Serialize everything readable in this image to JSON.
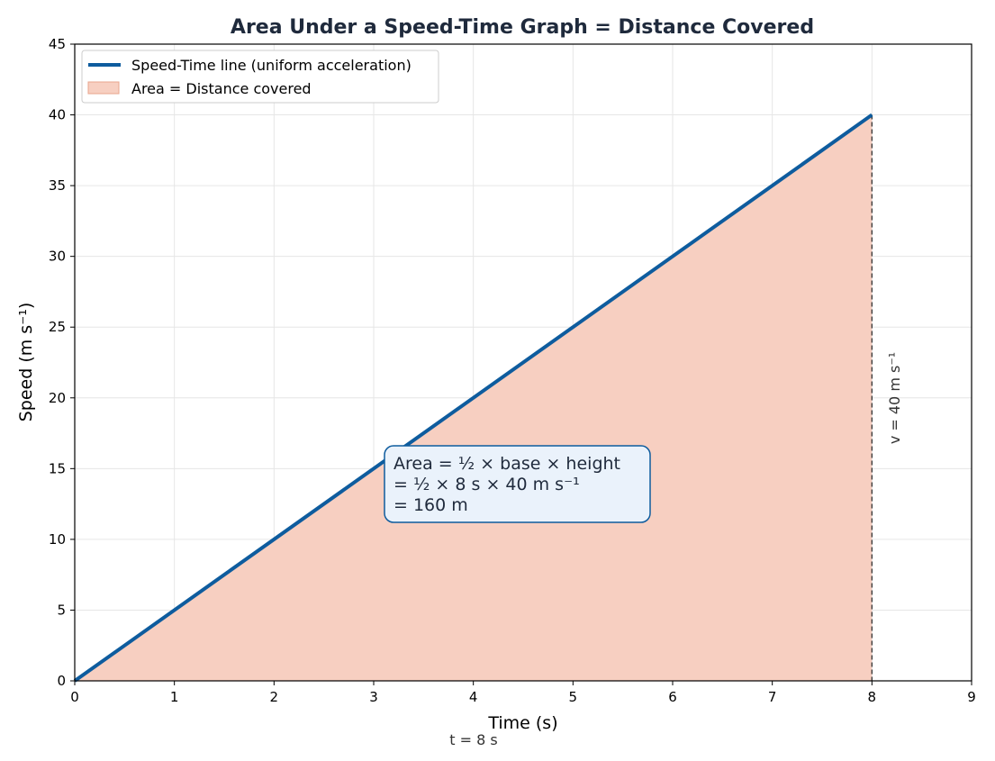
{
  "chart_data": {
    "type": "line",
    "title": "Area Under a Speed-Time Graph = Distance Covered",
    "xlabel": "Time (s)",
    "ylabel": "Speed (m s⁻¹)",
    "xlim": [
      0,
      9
    ],
    "ylim": [
      0,
      45
    ],
    "x_ticks": [
      0,
      1,
      2,
      3,
      4,
      5,
      6,
      7,
      8,
      9
    ],
    "y_ticks": [
      0,
      5,
      10,
      15,
      20,
      25,
      30,
      35,
      40,
      45
    ],
    "grid": true,
    "legend_position": "top-left",
    "series": [
      {
        "name": "Speed-Time line (uniform acceleration)",
        "x": [
          0,
          8
        ],
        "y": [
          0,
          40
        ],
        "color": "#0e5c9e"
      }
    ],
    "shaded_area": {
      "name": "Area = Distance covered",
      "x": [
        0,
        8
      ],
      "y": [
        0,
        40
      ],
      "color": "#f7cfc1"
    },
    "annotations": {
      "area_box_lines": [
        "Area = ½ × base × height",
        "= ½ × 8 s × 40 m s⁻¹",
        "= 160 m"
      ],
      "vertical_marker_x": 8,
      "vertical_marker_label": "v = 40 m s⁻¹",
      "base_label": "t = 8 s",
      "box_border_color": "#0e5c9e",
      "box_fill_color": "#eaf2fb"
    }
  }
}
